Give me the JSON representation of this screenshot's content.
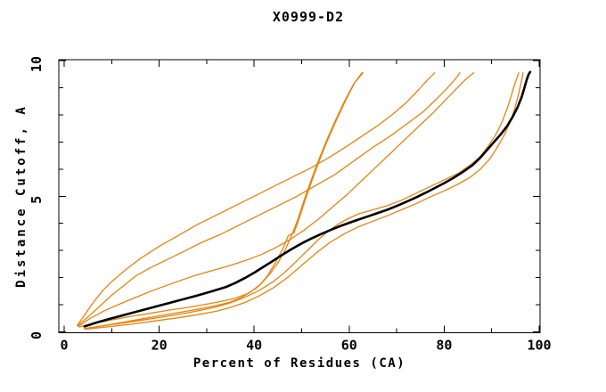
{
  "page": {
    "background": "#ffffff",
    "description": "GDT-style line plot, black reference curve with orange model curves"
  },
  "chart_data": {
    "type": "line",
    "title": "X0999-D2",
    "xlabel": "Percent of Residues (CA)",
    "ylabel": "Distance Cutoff, A",
    "xlim": [
      0,
      100
    ],
    "ylim": [
      0,
      10
    ],
    "x_major_ticks": [
      0,
      20,
      40,
      60,
      80,
      100
    ],
    "x_minor_ticks": [
      10,
      30,
      50,
      70,
      90
    ],
    "y_major_ticks": [
      0,
      5,
      10
    ],
    "y_minor_ticks": [
      1,
      2,
      3,
      4,
      6,
      7,
      8,
      9
    ],
    "grid": false,
    "legend_position": "none",
    "frame": "full box, mirrored inward ticks on all four sides",
    "colors": {
      "model_orange": "#e8830d",
      "reference_black": "#000000"
    },
    "series": [
      {
        "name": "orange-model-1",
        "color": "#e8830d",
        "width": 1.3,
        "points": [
          [
            2.8,
            0.25
          ],
          [
            4.2,
            0.6
          ],
          [
            6,
            1.05
          ],
          [
            8,
            1.5
          ],
          [
            10,
            1.85
          ],
          [
            13,
            2.3
          ],
          [
            16,
            2.7
          ],
          [
            20,
            3.15
          ],
          [
            24,
            3.55
          ],
          [
            28,
            3.95
          ],
          [
            32,
            4.3
          ],
          [
            36,
            4.65
          ],
          [
            40,
            5.0
          ],
          [
            44,
            5.35
          ],
          [
            48,
            5.7
          ],
          [
            52,
            6.05
          ],
          [
            56,
            6.45
          ],
          [
            60,
            6.9
          ],
          [
            63,
            7.25
          ],
          [
            66,
            7.6
          ],
          [
            69,
            8.0
          ],
          [
            72,
            8.45
          ],
          [
            74.5,
            8.9
          ],
          [
            76.3,
            9.25
          ],
          [
            78,
            9.55
          ]
        ]
      },
      {
        "name": "orange-model-2",
        "color": "#e8830d",
        "width": 1.3,
        "points": [
          [
            2.8,
            0.22
          ],
          [
            5,
            0.55
          ],
          [
            7.5,
            0.95
          ],
          [
            10,
            1.35
          ],
          [
            12.5,
            1.7
          ],
          [
            15,
            2.05
          ],
          [
            18,
            2.35
          ],
          [
            21.5,
            2.65
          ],
          [
            25,
            2.95
          ],
          [
            29,
            3.3
          ],
          [
            33,
            3.6
          ],
          [
            37,
            3.95
          ],
          [
            41,
            4.3
          ],
          [
            45,
            4.65
          ],
          [
            49,
            5.0
          ],
          [
            53,
            5.4
          ],
          [
            57,
            5.8
          ],
          [
            61,
            6.3
          ],
          [
            65,
            6.8
          ],
          [
            68.5,
            7.2
          ],
          [
            72,
            7.65
          ],
          [
            75.5,
            8.1
          ],
          [
            78.5,
            8.6
          ],
          [
            81,
            9.05
          ],
          [
            82.5,
            9.35
          ],
          [
            83.3,
            9.55
          ]
        ]
      },
      {
        "name": "orange-model-3",
        "color": "#e8830d",
        "width": 1.3,
        "points": [
          [
            3,
            0.2
          ],
          [
            5.5,
            0.5
          ],
          [
            8.5,
            0.78
          ],
          [
            12,
            1.05
          ],
          [
            15.5,
            1.3
          ],
          [
            19,
            1.55
          ],
          [
            23,
            1.8
          ],
          [
            27,
            2.05
          ],
          [
            31,
            2.25
          ],
          [
            35,
            2.45
          ],
          [
            38.5,
            2.65
          ],
          [
            41.5,
            2.85
          ],
          [
            44.5,
            3.1
          ],
          [
            47.5,
            3.4
          ],
          [
            50.5,
            3.75
          ],
          [
            53.5,
            4.15
          ],
          [
            56.5,
            4.6
          ],
          [
            59.5,
            5.05
          ],
          [
            62.5,
            5.55
          ],
          [
            65.5,
            6.05
          ],
          [
            68.5,
            6.55
          ],
          [
            71.5,
            7.05
          ],
          [
            74.5,
            7.55
          ],
          [
            77.5,
            8.05
          ],
          [
            80,
            8.5
          ],
          [
            82.5,
            8.95
          ],
          [
            84.5,
            9.3
          ],
          [
            86.2,
            9.55
          ]
        ]
      },
      {
        "name": "orange-model-4-steep",
        "color": "#e8830d",
        "width": 1.3,
        "points": [
          [
            3.2,
            0.18
          ],
          [
            6,
            0.3
          ],
          [
            10,
            0.44
          ],
          [
            14,
            0.57
          ],
          [
            18,
            0.68
          ],
          [
            22,
            0.8
          ],
          [
            26,
            0.9
          ],
          [
            30,
            1.02
          ],
          [
            33,
            1.12
          ],
          [
            36,
            1.24
          ],
          [
            38.5,
            1.4
          ],
          [
            40.5,
            1.62
          ],
          [
            42,
            1.88
          ],
          [
            43.5,
            2.18
          ],
          [
            45,
            2.55
          ],
          [
            46.5,
            3.0
          ],
          [
            48,
            3.6
          ],
          [
            49.3,
            4.2
          ],
          [
            50.5,
            4.85
          ],
          [
            52,
            5.6
          ],
          [
            53.5,
            6.3
          ],
          [
            55,
            6.95
          ],
          [
            57,
            7.75
          ],
          [
            59,
            8.5
          ],
          [
            61,
            9.15
          ],
          [
            62.7,
            9.55
          ]
        ]
      },
      {
        "name": "orange-model-5-steep",
        "color": "#e8830d",
        "width": 1.3,
        "points": [
          [
            5,
            0.12
          ],
          [
            9,
            0.25
          ],
          [
            13,
            0.37
          ],
          [
            17,
            0.5
          ],
          [
            21,
            0.62
          ],
          [
            25,
            0.74
          ],
          [
            29,
            0.86
          ],
          [
            32,
            0.97
          ],
          [
            35,
            1.1
          ],
          [
            37.5,
            1.28
          ],
          [
            39.5,
            1.5
          ],
          [
            41.5,
            1.78
          ],
          [
            43,
            2.12
          ],
          [
            44.5,
            2.56
          ],
          [
            46,
            3.05
          ],
          [
            47.2,
            3.55
          ],
          [
            48.4,
            3.66
          ],
          [
            49.6,
            4.25
          ],
          [
            50.8,
            4.9
          ],
          [
            52.3,
            5.65
          ],
          [
            53.8,
            6.35
          ],
          [
            55.3,
            7.0
          ],
          [
            57.3,
            7.8
          ],
          [
            59.3,
            8.55
          ],
          [
            61.2,
            9.2
          ],
          [
            62.9,
            9.55
          ]
        ]
      },
      {
        "name": "orange-model-6",
        "color": "#e8830d",
        "width": 1.3,
        "points": [
          [
            4.2,
            0.12
          ],
          [
            8,
            0.22
          ],
          [
            12,
            0.32
          ],
          [
            16,
            0.42
          ],
          [
            20,
            0.53
          ],
          [
            24,
            0.64
          ],
          [
            28,
            0.77
          ],
          [
            32,
            0.92
          ],
          [
            35,
            1.07
          ],
          [
            38,
            1.27
          ],
          [
            41,
            1.52
          ],
          [
            44,
            1.85
          ],
          [
            46.5,
            2.2
          ],
          [
            49,
            2.62
          ],
          [
            51.5,
            3.05
          ],
          [
            53.5,
            3.4
          ],
          [
            55.5,
            3.7
          ],
          [
            57.5,
            3.95
          ],
          [
            59.5,
            4.15
          ],
          [
            62,
            4.35
          ],
          [
            65,
            4.5
          ],
          [
            68,
            4.65
          ],
          [
            71,
            4.85
          ],
          [
            74,
            5.1
          ],
          [
            77,
            5.35
          ],
          [
            80,
            5.6
          ],
          [
            83,
            5.85
          ],
          [
            85.5,
            6.15
          ],
          [
            87.5,
            6.45
          ],
          [
            89.3,
            6.85
          ],
          [
            90.8,
            7.25
          ],
          [
            92.1,
            7.7
          ],
          [
            93.2,
            8.2
          ],
          [
            94.1,
            8.7
          ],
          [
            94.8,
            9.1
          ],
          [
            95.3,
            9.35
          ],
          [
            95.7,
            9.55
          ]
        ]
      },
      {
        "name": "orange-model-7",
        "color": "#e8830d",
        "width": 1.3,
        "points": [
          [
            4.5,
            0.1
          ],
          [
            9,
            0.18
          ],
          [
            14,
            0.28
          ],
          [
            19,
            0.4
          ],
          [
            24,
            0.52
          ],
          [
            28,
            0.63
          ],
          [
            32,
            0.76
          ],
          [
            35,
            0.9
          ],
          [
            38,
            1.08
          ],
          [
            41,
            1.32
          ],
          [
            44,
            1.62
          ],
          [
            47,
            2.0
          ],
          [
            50,
            2.45
          ],
          [
            53,
            2.9
          ],
          [
            56,
            3.3
          ],
          [
            59,
            3.62
          ],
          [
            62,
            3.88
          ],
          [
            65,
            4.08
          ],
          [
            68,
            4.28
          ],
          [
            71,
            4.5
          ],
          [
            74,
            4.72
          ],
          [
            77,
            4.97
          ],
          [
            80,
            5.2
          ],
          [
            83,
            5.45
          ],
          [
            85.5,
            5.7
          ],
          [
            87.5,
            5.98
          ],
          [
            89.5,
            6.35
          ],
          [
            91,
            6.75
          ],
          [
            92.5,
            7.2
          ],
          [
            93.8,
            7.7
          ],
          [
            94.8,
            8.2
          ],
          [
            95.6,
            8.7
          ],
          [
            96.1,
            9.1
          ],
          [
            96.4,
            9.35
          ],
          [
            96.6,
            9.55
          ]
        ]
      },
      {
        "name": "black-reference",
        "color": "#000000",
        "width": 2.6,
        "points": [
          [
            4.3,
            0.2
          ],
          [
            7,
            0.35
          ],
          [
            10,
            0.5
          ],
          [
            13,
            0.64
          ],
          [
            16,
            0.78
          ],
          [
            19,
            0.92
          ],
          [
            22,
            1.06
          ],
          [
            25,
            1.2
          ],
          [
            28,
            1.34
          ],
          [
            31,
            1.49
          ],
          [
            34,
            1.65
          ],
          [
            36,
            1.8
          ],
          [
            38,
            1.98
          ],
          [
            40,
            2.18
          ],
          [
            42,
            2.4
          ],
          [
            44,
            2.62
          ],
          [
            46,
            2.85
          ],
          [
            48,
            3.06
          ],
          [
            50,
            3.26
          ],
          [
            52,
            3.44
          ],
          [
            54,
            3.6
          ],
          [
            56,
            3.75
          ],
          [
            58,
            3.89
          ],
          [
            60,
            4.02
          ],
          [
            62,
            4.14
          ],
          [
            64,
            4.26
          ],
          [
            66,
            4.38
          ],
          [
            68,
            4.5
          ],
          [
            70,
            4.64
          ],
          [
            72,
            4.79
          ],
          [
            74,
            4.95
          ],
          [
            76,
            5.12
          ],
          [
            78,
            5.3
          ],
          [
            80,
            5.48
          ],
          [
            82,
            5.68
          ],
          [
            84,
            5.9
          ],
          [
            86,
            6.15
          ],
          [
            87.5,
            6.4
          ],
          [
            89,
            6.7
          ],
          [
            90.5,
            7.0
          ],
          [
            92,
            7.3
          ],
          [
            93.3,
            7.6
          ],
          [
            94.5,
            7.95
          ],
          [
            95.5,
            8.3
          ],
          [
            96.3,
            8.65
          ],
          [
            96.9,
            9.0
          ],
          [
            97.4,
            9.3
          ],
          [
            97.8,
            9.5
          ],
          [
            98.1,
            9.58
          ]
        ]
      }
    ]
  }
}
